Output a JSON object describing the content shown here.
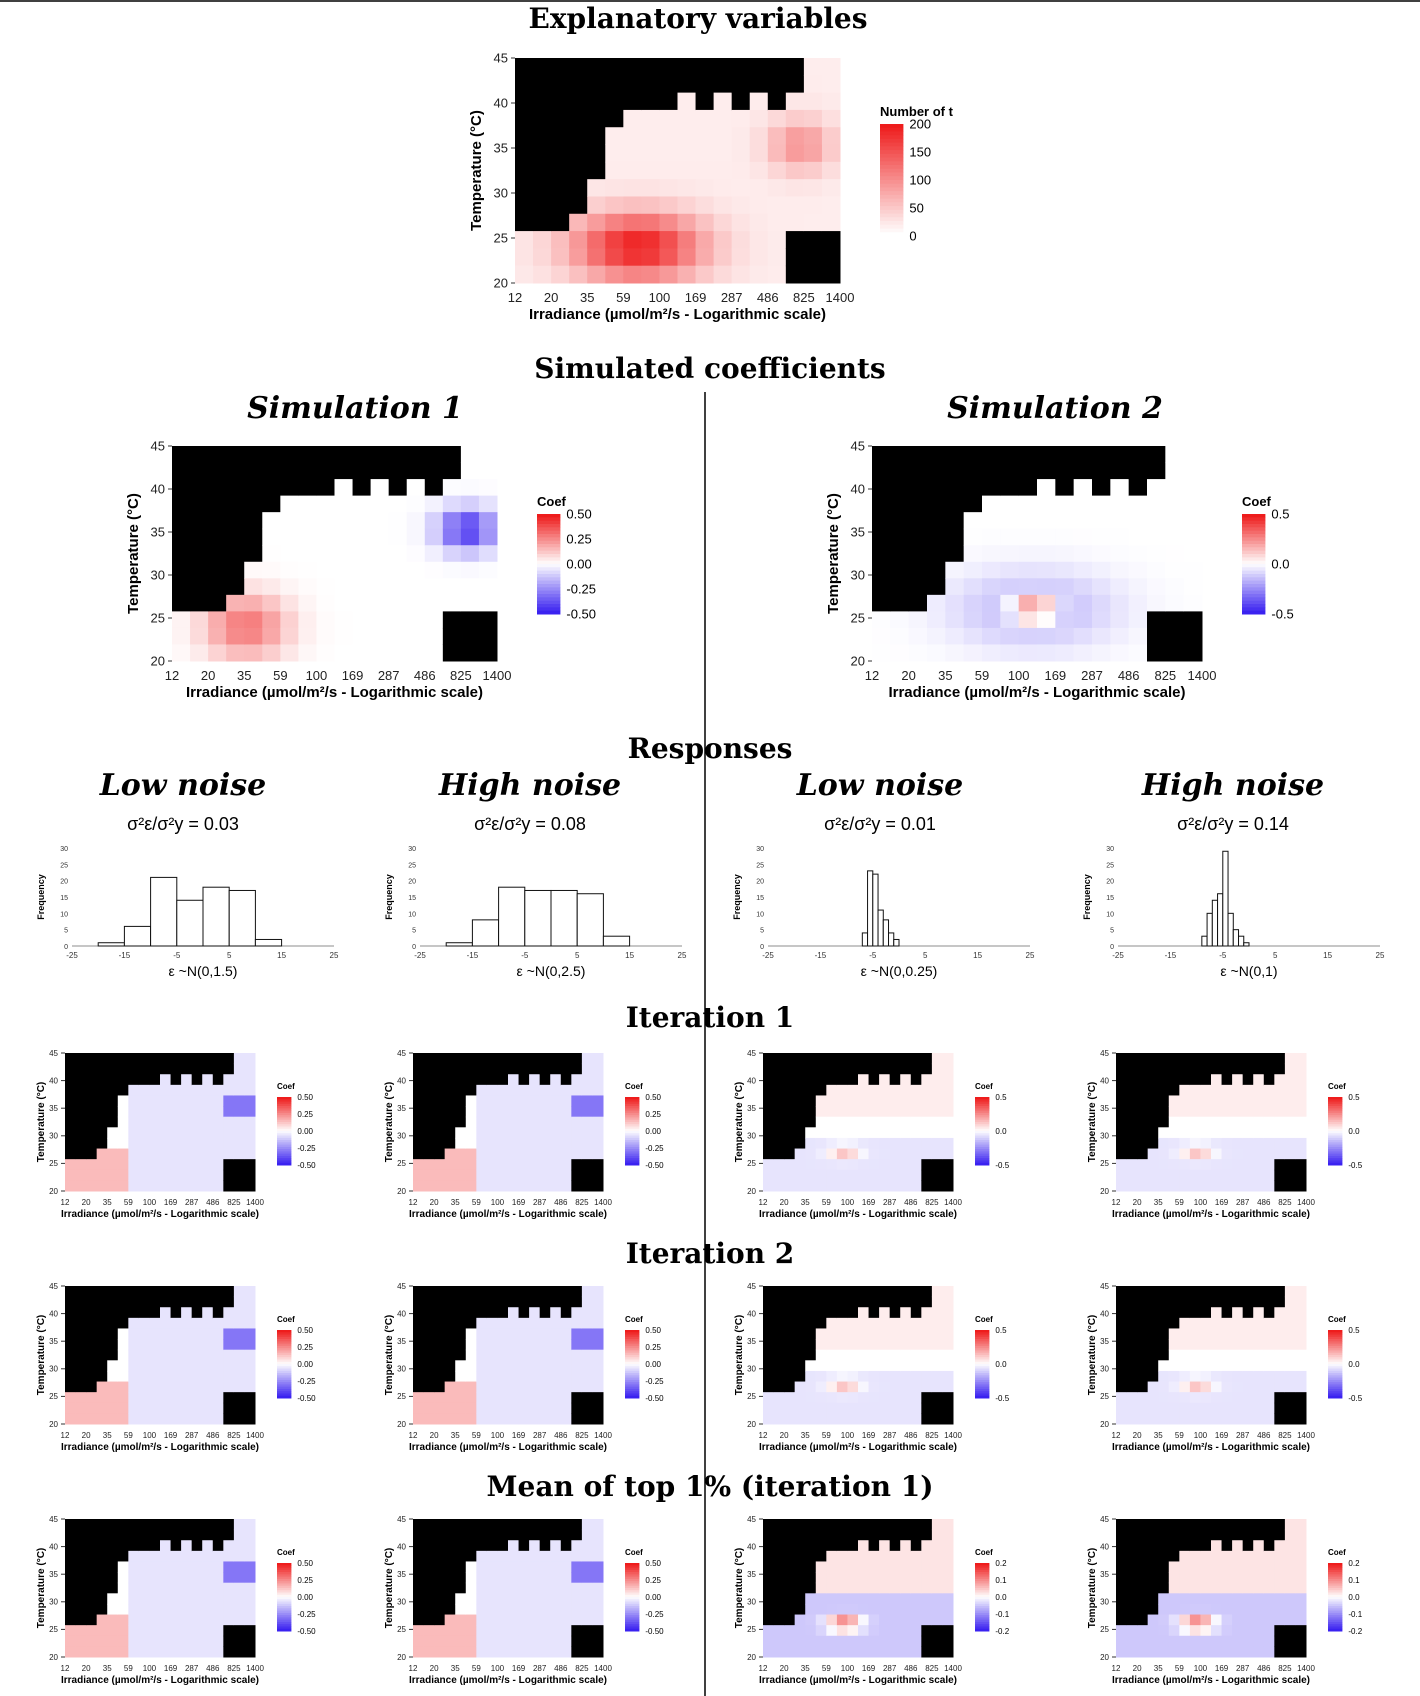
{
  "section_titles": {
    "explanatory": "Explanatory variables",
    "simulated": "Simulated coefficients",
    "responses": "Responses",
    "iteration1": "Iteration 1",
    "iteration2": "Iteration 2",
    "mean_top": "Mean of top 1% (iteration 1)"
  },
  "simulation_titles": [
    "Simulation 1",
    "Simulation 2"
  ],
  "noise_titles": [
    "Low noise",
    "High noise",
    "Low noise",
    "High noise"
  ],
  "noise_ratios": [
    "0.03",
    "0.08",
    "0.01",
    "0.14"
  ],
  "axes": {
    "xlabel": "Irradiance (µmol/m²/s - Logarithmic scale)",
    "ylabel": "Temperature (°C)",
    "x_ticks": [
      "12",
      "20",
      "35",
      "59",
      "100",
      "169",
      "287",
      "486",
      "825",
      "1400"
    ],
    "y_ticks": [
      "20",
      "25",
      "30",
      "35",
      "40",
      "45"
    ]
  },
  "legends": {
    "count": {
      "title": "Number of t",
      "ticks": [
        "200",
        "150",
        "100",
        "50",
        "0"
      ]
    },
    "coef_sim1": {
      "title": "Coef",
      "ticks": [
        "0.50",
        "0.25",
        "0.00",
        "-0.25",
        "-0.50"
      ]
    },
    "coef_sim2": {
      "title": "Coef",
      "ticks": [
        "0.5",
        "0.0",
        "-0.5"
      ]
    },
    "coef_sim2_mean": {
      "title": "Coef",
      "ticks": [
        "0.2",
        "0.1",
        "0.0",
        "-0.1",
        "-0.2"
      ]
    }
  },
  "colors": {
    "high": "#ee1c1c",
    "low": "#3a22f0",
    "mask": "#000000"
  },
  "chart_data": [
    {
      "type": "heatmap",
      "title": "Explanatory variables",
      "xlabel": "Irradiance (µmol/m²/s - Logarithmic scale)",
      "ylabel": "Temperature (°C)",
      "x_scale": "log",
      "xlim": [
        12,
        1400
      ],
      "ylim": [
        20,
        45
      ],
      "legend_title": "Number of t",
      "value_range": [
        0,
        200
      ],
      "peak": {
        "irradiance": 75,
        "temperature": 25,
        "count": 200
      }
    },
    {
      "type": "histogram",
      "simulation": 1,
      "noise": "Low noise",
      "formula": "ε ~N(0,1.5)",
      "ylabel": "Frequency",
      "bin_edges": [
        -25,
        -15,
        -10,
        -5,
        0,
        5,
        10,
        15,
        20,
        25
      ],
      "bins": [
        {
          "from": -20,
          "to": -15,
          "count": 1
        },
        {
          "from": -15,
          "to": -10,
          "count": 6
        },
        {
          "from": -10,
          "to": -5,
          "count": 21
        },
        {
          "from": -5,
          "to": 0,
          "count": 14
        },
        {
          "from": 0,
          "to": 5,
          "count": 18
        },
        {
          "from": 5,
          "to": 10,
          "count": 17
        },
        {
          "from": 10,
          "to": 15,
          "count": 2
        }
      ]
    },
    {
      "type": "histogram",
      "simulation": 1,
      "noise": "High noise",
      "formula": "ε ~N(0,2.5)",
      "ylabel": "Frequency",
      "bins": [
        {
          "from": -20,
          "to": -15,
          "count": 1
        },
        {
          "from": -15,
          "to": -10,
          "count": 8
        },
        {
          "from": -10,
          "to": -5,
          "count": 18
        },
        {
          "from": -5,
          "to": 0,
          "count": 17
        },
        {
          "from": 0,
          "to": 5,
          "count": 17
        },
        {
          "from": 5,
          "to": 10,
          "count": 16
        },
        {
          "from": 10,
          "to": 15,
          "count": 3
        }
      ]
    },
    {
      "type": "histogram",
      "simulation": 2,
      "noise": "Low noise",
      "formula": "ε ~N(0,0.25)",
      "ylabel": "Frequency",
      "bins": [
        {
          "from": -7,
          "to": -6,
          "count": 4
        },
        {
          "from": -6,
          "to": -5,
          "count": 23
        },
        {
          "from": -5,
          "to": -4,
          "count": 22
        },
        {
          "from": -4,
          "to": -3,
          "count": 11
        },
        {
          "from": -3,
          "to": -2,
          "count": 8
        },
        {
          "from": -2,
          "to": -1,
          "count": 4
        },
        {
          "from": -1,
          "to": 0,
          "count": 2
        }
      ]
    },
    {
      "type": "histogram",
      "simulation": 2,
      "noise": "High noise",
      "formula": "ε ~N(0,1)",
      "ylabel": "Frequency",
      "bins": [
        {
          "from": -9,
          "to": -8,
          "count": 3
        },
        {
          "from": -8,
          "to": -7,
          "count": 10
        },
        {
          "from": -7,
          "to": -6,
          "count": 14
        },
        {
          "from": -6,
          "to": -5,
          "count": 16
        },
        {
          "from": -5,
          "to": -4,
          "count": 29
        },
        {
          "from": -4,
          "to": -3,
          "count": 10
        },
        {
          "from": -3,
          "to": -2,
          "count": 5
        },
        {
          "from": -2,
          "to": -1,
          "count": 3
        },
        {
          "from": -1,
          "to": 0,
          "count": 1
        }
      ]
    }
  ],
  "histogram_axes": {
    "x_ticks": [
      "-25",
      "-15",
      "-5",
      "5",
      "15",
      "25"
    ],
    "y_ticks": [
      "0",
      "5",
      "10",
      "15",
      "20",
      "25",
      "30"
    ]
  }
}
